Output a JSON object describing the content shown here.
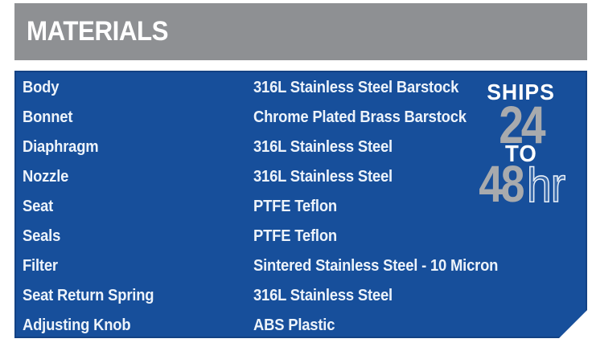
{
  "header": {
    "title": "MATERIALS"
  },
  "table": {
    "rows": [
      {
        "label": "Body",
        "value": "316L Stainless Steel Barstock"
      },
      {
        "label": "Bonnet",
        "value": "Chrome Plated Brass Barstock"
      },
      {
        "label": "Diaphragm",
        "value": "316L Stainless Steel"
      },
      {
        "label": "Nozzle",
        "value": "316L Stainless Steel"
      },
      {
        "label": "Seat",
        "value": "PTFE Teflon"
      },
      {
        "label": "Seals",
        "value": "PTFE Teflon"
      },
      {
        "label": "Filter",
        "value": "Sintered Stainless Steel - 10 Micron"
      },
      {
        "label": "Seat Return Spring",
        "value": "316L Stainless Steel"
      },
      {
        "label": "Adjusting Knob",
        "value": "ABS Plastic"
      }
    ]
  },
  "badge": {
    "ships": "SHIPS",
    "hours_from": "24",
    "to_word": "TO",
    "hours_to": "48",
    "unit": "hr"
  },
  "colors": {
    "panel_blue": "#174f9b",
    "band_gray": "#8e9093",
    "numeral_gray": "#a8aaad",
    "text_light": "#edf3fa"
  }
}
